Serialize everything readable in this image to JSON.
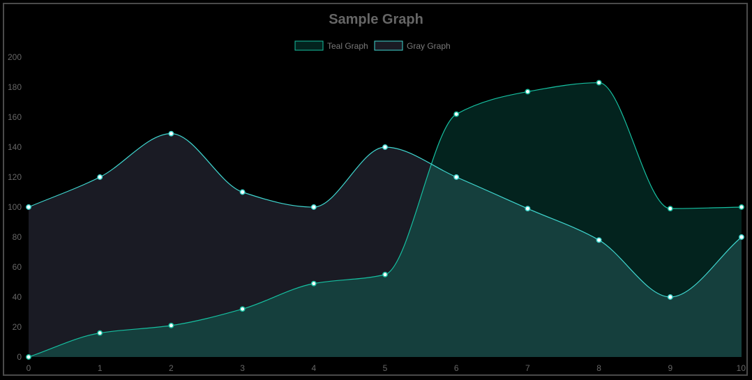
{
  "chart_data": {
    "type": "area",
    "title": "Sample Graph",
    "x": [
      0,
      1,
      2,
      3,
      4,
      5,
      6,
      7,
      8,
      9,
      10
    ],
    "xlim": [
      0,
      10
    ],
    "ylim": [
      0,
      200
    ],
    "yticks": [
      0,
      20,
      40,
      60,
      80,
      100,
      120,
      140,
      160,
      180,
      200
    ],
    "grid": false,
    "legend_position": "top-center",
    "series": [
      {
        "name": "Teal Graph",
        "values": [
          0,
          16,
          21,
          32,
          49,
          55,
          162,
          177,
          183,
          99,
          100
        ],
        "fill": "#03231e",
        "stroke": "#16bfa0"
      },
      {
        "name": "Gray Graph",
        "values": [
          100,
          120,
          149,
          110,
          100,
          140,
          120,
          99,
          78,
          40,
          80
        ],
        "fill": "#1a1b24",
        "overlap_fill": "#153f3d",
        "stroke": "#3fd6cf"
      }
    ]
  },
  "colors": {
    "background": "#000000",
    "frame": "#4a4a4a",
    "title": "#666666",
    "axis_text": "#666666",
    "legend_text": "#7a7a7a",
    "point_fill": "#ffffff",
    "point_stroke": "#3fd6cf"
  }
}
